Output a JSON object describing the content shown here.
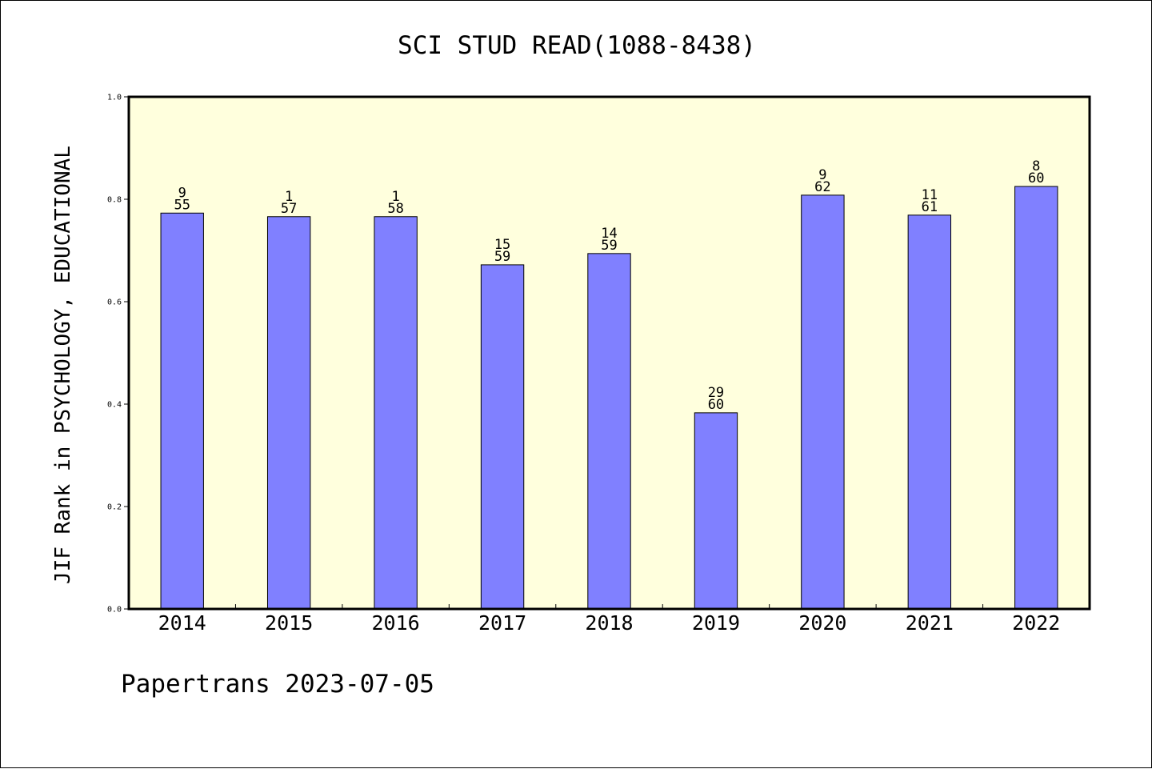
{
  "chart_data": {
    "type": "bar",
    "title": "SCI STUD READ(1088-8438)",
    "ylabel": "JIF Rank in PSYCHOLOGY, EDUCATIONAL",
    "xlabel": "",
    "ylim": [
      0,
      1.0
    ],
    "yticks": [
      "0.0",
      "0.2",
      "0.4",
      "0.6",
      "0.8",
      "1.0"
    ],
    "categories": [
      "2014",
      "2015",
      "2016",
      "2017",
      "2018",
      "2019",
      "2020",
      "2021",
      "2022"
    ],
    "values": [
      0.773,
      0.766,
      0.766,
      0.672,
      0.694,
      0.383,
      0.808,
      0.769,
      0.825
    ],
    "rank_labels": [
      {
        "rank": "9",
        "total": "55"
      },
      {
        "rank": "1",
        "total": "57"
      },
      {
        "rank": "1",
        "total": "58"
      },
      {
        "rank": "15",
        "total": "59"
      },
      {
        "rank": "14",
        "total": "59"
      },
      {
        "rank": "29",
        "total": "60"
      },
      {
        "rank": "9",
        "total": "62"
      },
      {
        "rank": "11",
        "total": "61"
      },
      {
        "rank": "8",
        "total": "60"
      }
    ],
    "colors": {
      "bar": "#8080ff",
      "plot_background": "#ffffdd",
      "axis": "#000000"
    },
    "grid": false,
    "legend": "none"
  },
  "footer": "Papertrans 2023-07-05"
}
